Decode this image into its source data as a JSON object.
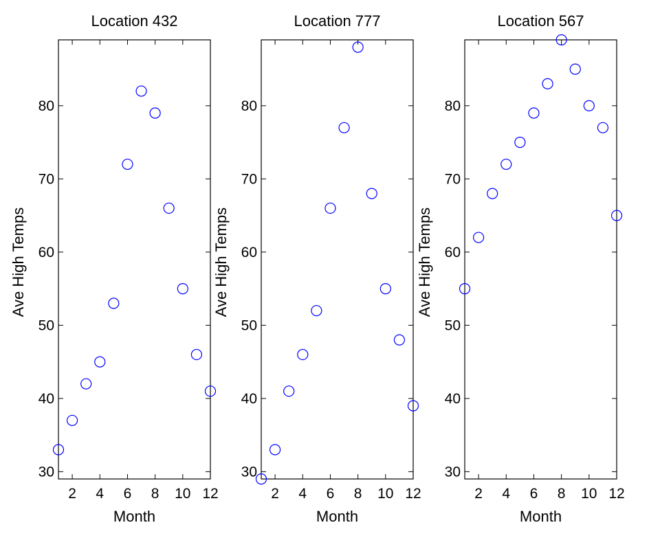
{
  "chart_data": [
    {
      "type": "scatter",
      "title": "Location 432",
      "xlabel": "Month",
      "ylabel": "Ave High Temps",
      "xlim": [
        1,
        12
      ],
      "ylim": [
        29,
        89
      ],
      "xticks": [
        2,
        4,
        6,
        8,
        10,
        12
      ],
      "yticks": [
        30,
        40,
        50,
        60,
        70,
        80
      ],
      "grid": false,
      "marker": "circle-open",
      "color": "#0000ff",
      "x": [
        1,
        2,
        3,
        4,
        5,
        6,
        7,
        8,
        9,
        10,
        11,
        12
      ],
      "y": [
        33,
        37,
        42,
        45,
        53,
        72,
        82,
        79,
        66,
        55,
        46,
        41
      ]
    },
    {
      "type": "scatter",
      "title": "Location 777",
      "xlabel": "Month",
      "ylabel": "Ave High Temps",
      "xlim": [
        1,
        12
      ],
      "ylim": [
        29,
        89
      ],
      "xticks": [
        2,
        4,
        6,
        8,
        10,
        12
      ],
      "yticks": [
        30,
        40,
        50,
        60,
        70,
        80
      ],
      "grid": false,
      "marker": "circle-open",
      "color": "#0000ff",
      "x": [
        1,
        2,
        3,
        4,
        5,
        6,
        7,
        8,
        9,
        10,
        11,
        12
      ],
      "y": [
        29,
        33,
        41,
        46,
        52,
        66,
        77,
        88,
        68,
        55,
        48,
        39
      ]
    },
    {
      "type": "scatter",
      "title": "Location 567",
      "xlabel": "Month",
      "ylabel": "Ave High Temps",
      "xlim": [
        1,
        12
      ],
      "ylim": [
        29,
        89
      ],
      "xticks": [
        2,
        4,
        6,
        8,
        10,
        12
      ],
      "yticks": [
        30,
        40,
        50,
        60,
        70,
        80
      ],
      "grid": false,
      "marker": "circle-open",
      "color": "#0000ff",
      "x": [
        1,
        2,
        3,
        4,
        5,
        6,
        7,
        8,
        9,
        10,
        11,
        12
      ],
      "y": [
        55,
        62,
        68,
        72,
        75,
        79,
        83,
        89,
        85,
        80,
        77,
        65
      ]
    }
  ]
}
